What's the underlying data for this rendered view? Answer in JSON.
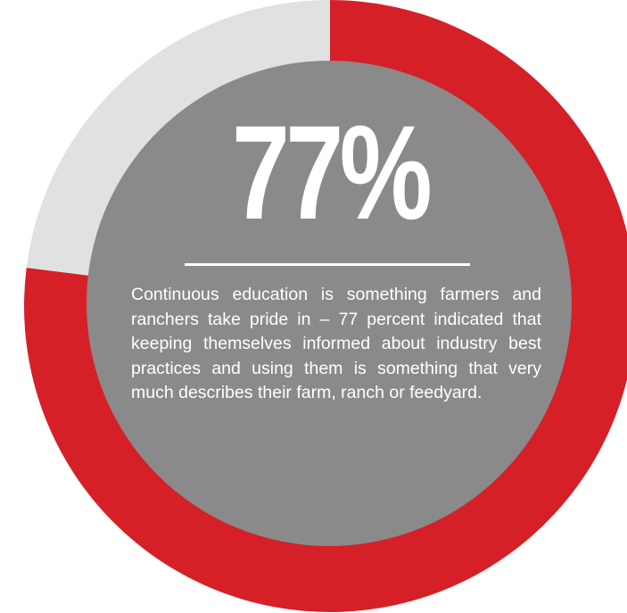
{
  "chart_data": {
    "type": "pie",
    "values": [
      77,
      23
    ],
    "value_labels": [
      "77%",
      null
    ],
    "colors": [
      "#d52027",
      "#e0e1e1"
    ],
    "center_color": "#8a8a8a",
    "annotation": "Continuous education is something farmers and ranchers take pride in – 77 percent indicated that keeping themselves informed about industry best practices and using them is something that very much describes their farm, ranch or feedyard."
  }
}
